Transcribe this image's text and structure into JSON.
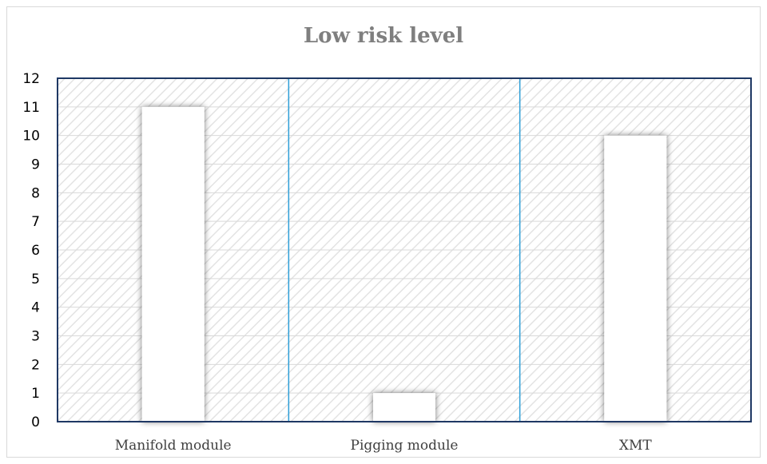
{
  "chart_data": {
    "type": "bar",
    "title": "Low risk level",
    "xlabel": "",
    "ylabel": "",
    "categories": [
      "Manifold module",
      "Pigging module",
      "XMT"
    ],
    "values": [
      11,
      1,
      10
    ],
    "ylim": [
      0,
      12
    ],
    "yticks": [
      "0",
      "1",
      "2",
      "3",
      "4",
      "5",
      "6",
      "7",
      "8",
      "9",
      "10",
      "11",
      "12"
    ],
    "grid": true,
    "legend": "none",
    "colors": {
      "bar_fill": "#ffffff",
      "plot_border": "#1f3864",
      "category_divider": "#2e9fd8",
      "gridline": "#d9d9d9",
      "hatch": "#e3e3e3",
      "title": "#7f7f7f"
    }
  }
}
